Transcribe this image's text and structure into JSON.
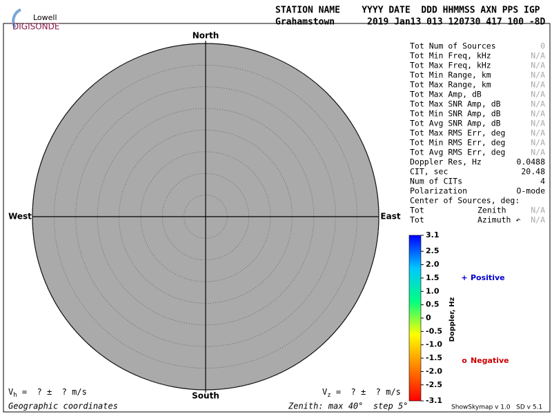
{
  "header": {
    "logo_top": "Lowell",
    "logo_bottom": "DIGISONDE",
    "columns": "STATION NAME    YYYY DATE  DDD HHMMSS AXN PPS IGP",
    "values": "Grahamstown      2019 Jan13 013 120730 417 100 -8D"
  },
  "chart_data": {
    "type": "skymap",
    "background": "#aaaaaa",
    "rlim": [
      0,
      40
    ],
    "rticks": [
      5,
      10,
      15,
      20,
      25,
      30,
      35,
      40
    ],
    "directions": {
      "north": "North",
      "south": "South",
      "west": "West",
      "east": "East"
    },
    "colorbar": {
      "label": "Doppler, Hz",
      "lim": [
        -3.1,
        3.1
      ],
      "ticks": [
        3.1,
        2.5,
        {
          "value": 2,
          "label": "2.0"
        },
        1.5,
        {
          "value": 1,
          "label": "1.0"
        },
        0.5,
        0,
        -0.5,
        {
          "value": -1,
          "label": "-1.0"
        },
        -1.5,
        {
          "value": -2,
          "label": "-2.0"
        },
        -2.5,
        -3.1
      ],
      "colors": [
        "#0000ff",
        "#00c8ff",
        "#00ff80",
        "#ffff00",
        "#ff8000",
        "#ff0000"
      ]
    },
    "legend": [
      {
        "symbol": "+",
        "name": "Positive",
        "color": "#0000cc"
      },
      {
        "symbol": "o",
        "name": "Negative",
        "color": "#cc0000"
      }
    ]
  },
  "stats": [
    {
      "label": "Tot Num of Sources",
      "value": "0",
      "dim": true
    },
    {
      "label": "Tot Min Freq, kHz",
      "value": "N/A",
      "dim": true
    },
    {
      "label": "Tot Max Freq, kHz",
      "value": "N/A",
      "dim": true
    },
    {
      "label": "Tot Min Range, km",
      "value": "N/A",
      "dim": true
    },
    {
      "label": "Tot Max Range, km",
      "value": "N/A",
      "dim": true
    },
    {
      "label": "Tot Max Amp, dB",
      "value": "N/A",
      "dim": true
    },
    {
      "label": "Tot Max SNR Amp, dB",
      "value": "N/A",
      "dim": true
    },
    {
      "label": "Tot Min SNR Amp, dB",
      "value": "N/A",
      "dim": true
    },
    {
      "label": "Tot Avg SNR Amp, dB",
      "value": "N/A",
      "dim": true
    },
    {
      "label": "Tot Max RMS Err, deg",
      "value": "N/A",
      "dim": true
    },
    {
      "label": "Tot Min RMS Err, deg",
      "value": "N/A",
      "dim": true
    },
    {
      "label": "Tot Avg RMS Err, deg",
      "value": "N/A",
      "dim": true
    },
    {
      "label": "Doppler Res, Hz",
      "value": "0.0488",
      "dim": false
    },
    {
      "label": "CIT, sec",
      "value": "20.48",
      "dim": false
    },
    {
      "label": "Num of CITs",
      "value": "4",
      "dim": false
    },
    {
      "label": "Polarization",
      "value": "O-mode",
      "dim": false
    },
    {
      "label": "Center of Sources, deg:"
    },
    {
      "label": "Tot",
      "middle": "Zenith",
      "value": "N/A",
      "dim": true
    },
    {
      "label": "Tot",
      "middle": "Azimuth ↶",
      "value": "N/A",
      "dim": true
    }
  ],
  "footer": {
    "vh": {
      "symbol": "V",
      "sub": "h",
      "text": " =  ? ±  ? m/s"
    },
    "vz": {
      "symbol": "V",
      "sub": "z",
      "text": " =  ? ±  ? m/s"
    },
    "coords": "Geographic coordinates",
    "zenith": "Zenith: max 40°  step 5°",
    "version": "ShowSkymap v 1.0   SD v 5.1"
  }
}
